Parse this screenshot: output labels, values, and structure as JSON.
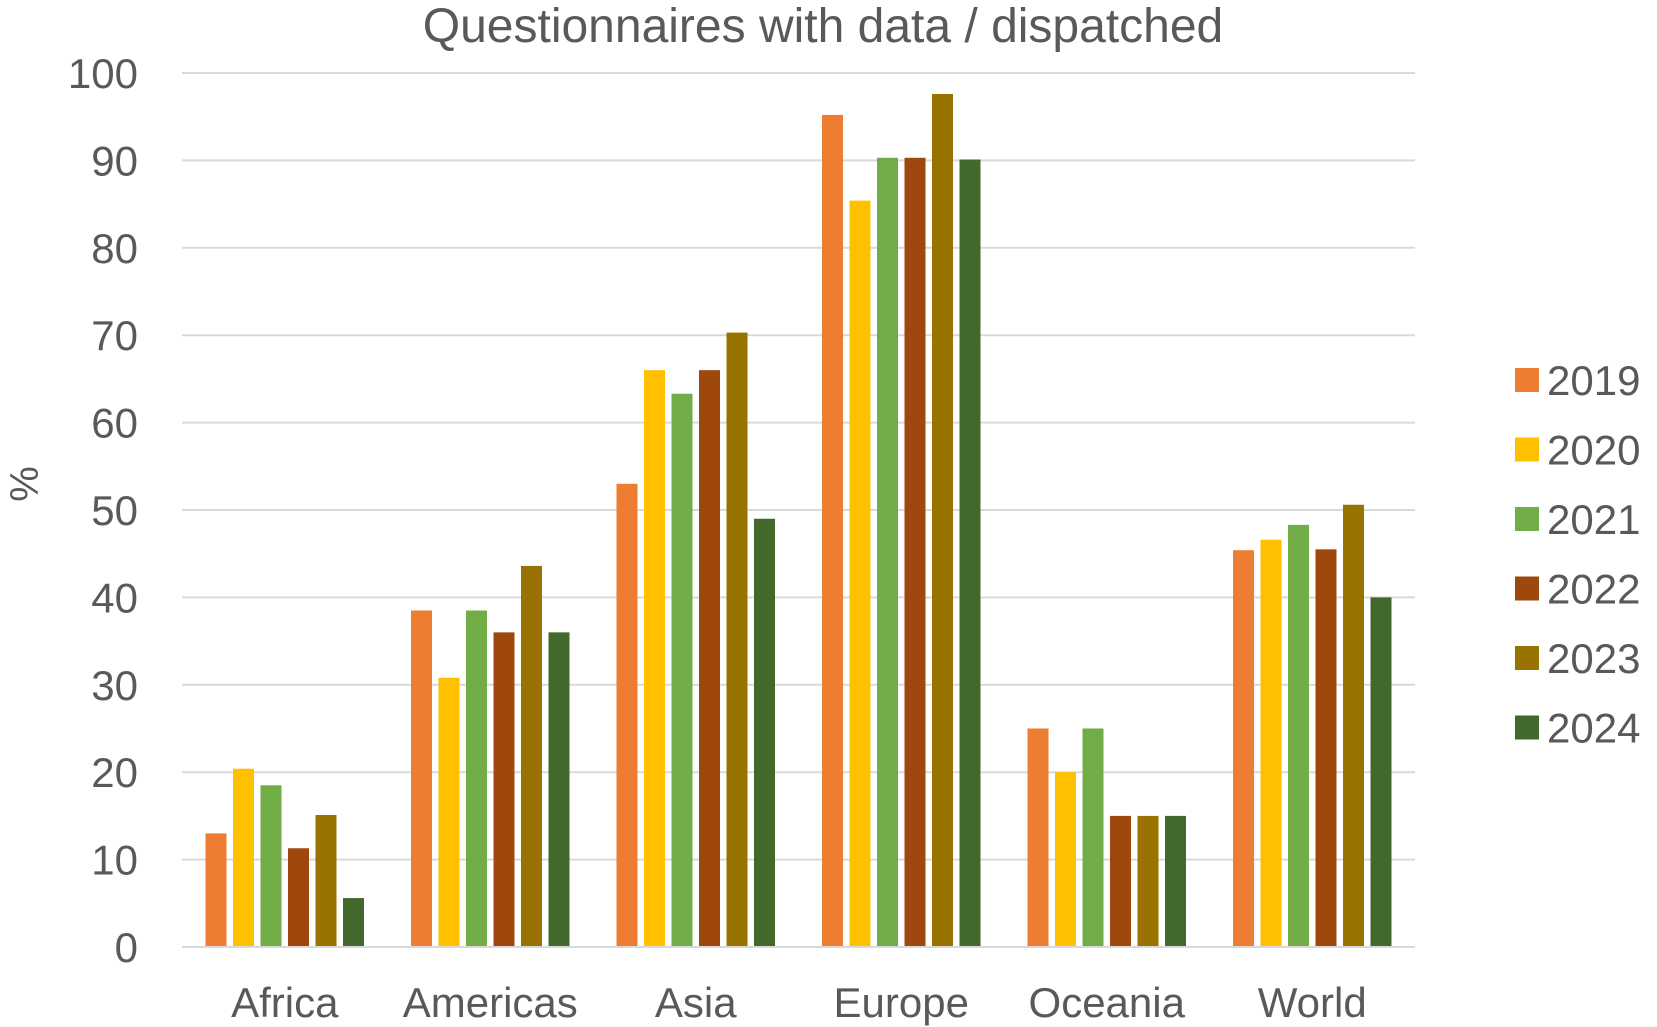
{
  "chart_data": {
    "type": "bar",
    "title": "Questionnaires with data / dispatched",
    "xlabel": "",
    "ylabel": "%",
    "ylim": [
      0,
      100
    ],
    "yticks": [
      0,
      10,
      20,
      30,
      40,
      50,
      60,
      70,
      80,
      90,
      100
    ],
    "grid": true,
    "legend_position": "right",
    "categories": [
      "Africa",
      "Americas",
      "Asia",
      "Europe",
      "Oceania",
      "World"
    ],
    "series": [
      {
        "name": "2019",
        "color": "#ED7D31",
        "values": [
          13,
          38.5,
          53,
          95.2,
          25,
          45.4
        ]
      },
      {
        "name": "2020",
        "color": "#FFC000",
        "values": [
          20.4,
          30.8,
          66,
          85.4,
          20,
          46.6
        ]
      },
      {
        "name": "2021",
        "color": "#70AD47",
        "values": [
          18.5,
          38.5,
          63.3,
          90.3,
          25,
          48.3
        ]
      },
      {
        "name": "2022",
        "color": "#9E480E",
        "values": [
          11.3,
          36,
          66,
          90.3,
          15,
          45.5
        ]
      },
      {
        "name": "2023",
        "color": "#997300",
        "values": [
          15.1,
          43.6,
          70.3,
          97.6,
          15,
          50.6
        ]
      },
      {
        "name": "2024",
        "color": "#43682B",
        "values": [
          5.6,
          36,
          49,
          90.1,
          15,
          40
        ]
      }
    ]
  }
}
